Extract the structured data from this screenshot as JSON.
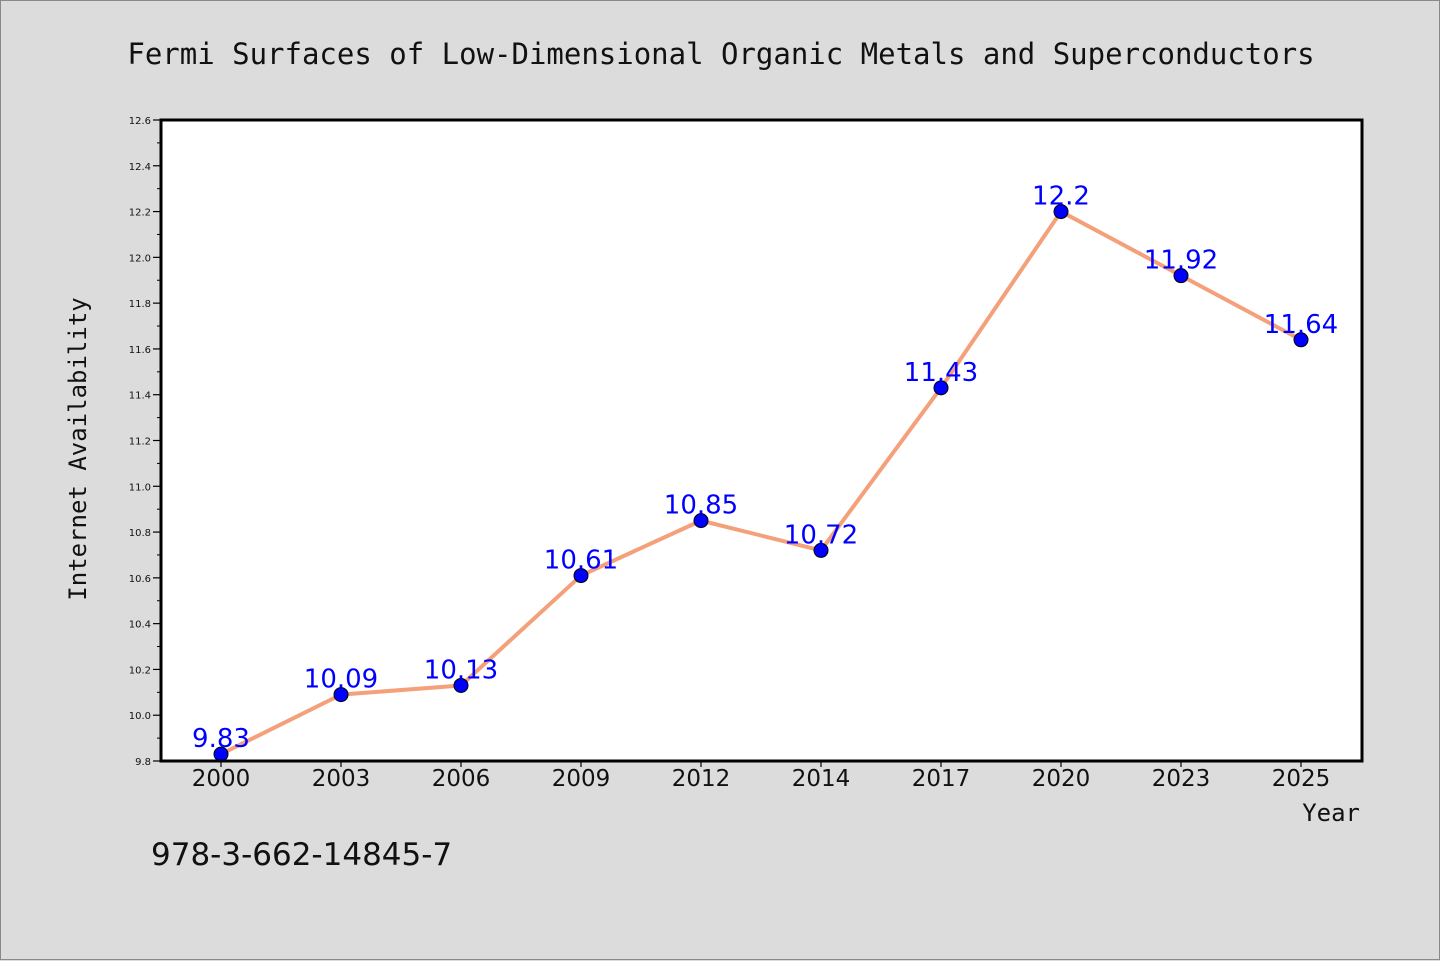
{
  "chart_data": {
    "type": "line",
    "title": "Fermi Surfaces of Low-Dimensional Organic Metals and Superconductors",
    "xlabel": "Year",
    "ylabel": "Internet Availability",
    "categories": [
      "2000",
      "2003",
      "2006",
      "2009",
      "2012",
      "2014",
      "2017",
      "2020",
      "2023",
      "2025"
    ],
    "series": [
      {
        "values": [
          9.83,
          10.09,
          10.13,
          10.61,
          10.85,
          10.72,
          11.43,
          12.2,
          11.92,
          11.64
        ],
        "labels": [
          "9.83",
          "10.09",
          "10.13",
          "10.61",
          "10.85",
          "10.72",
          "11.43",
          "12.2",
          "11.92",
          "11.64"
        ],
        "line_color": "#f4a07a",
        "marker_color": "#0000ff"
      }
    ],
    "ylim": [
      9.8,
      12.6
    ],
    "yticks": [
      "9.8",
      "10.0",
      "10.2",
      "10.4",
      "10.6",
      "10.8",
      "11.0",
      "11.2",
      "11.4",
      "11.6",
      "11.8",
      "12.0",
      "12.2",
      "12.4",
      "12.6"
    ],
    "grid": false,
    "legend": "none"
  },
  "footer_text": "978-3-662-14845-7",
  "colors": {
    "background": "#dcdcdc",
    "plot_background": "#ffffff",
    "label_color": "#0000ff"
  }
}
